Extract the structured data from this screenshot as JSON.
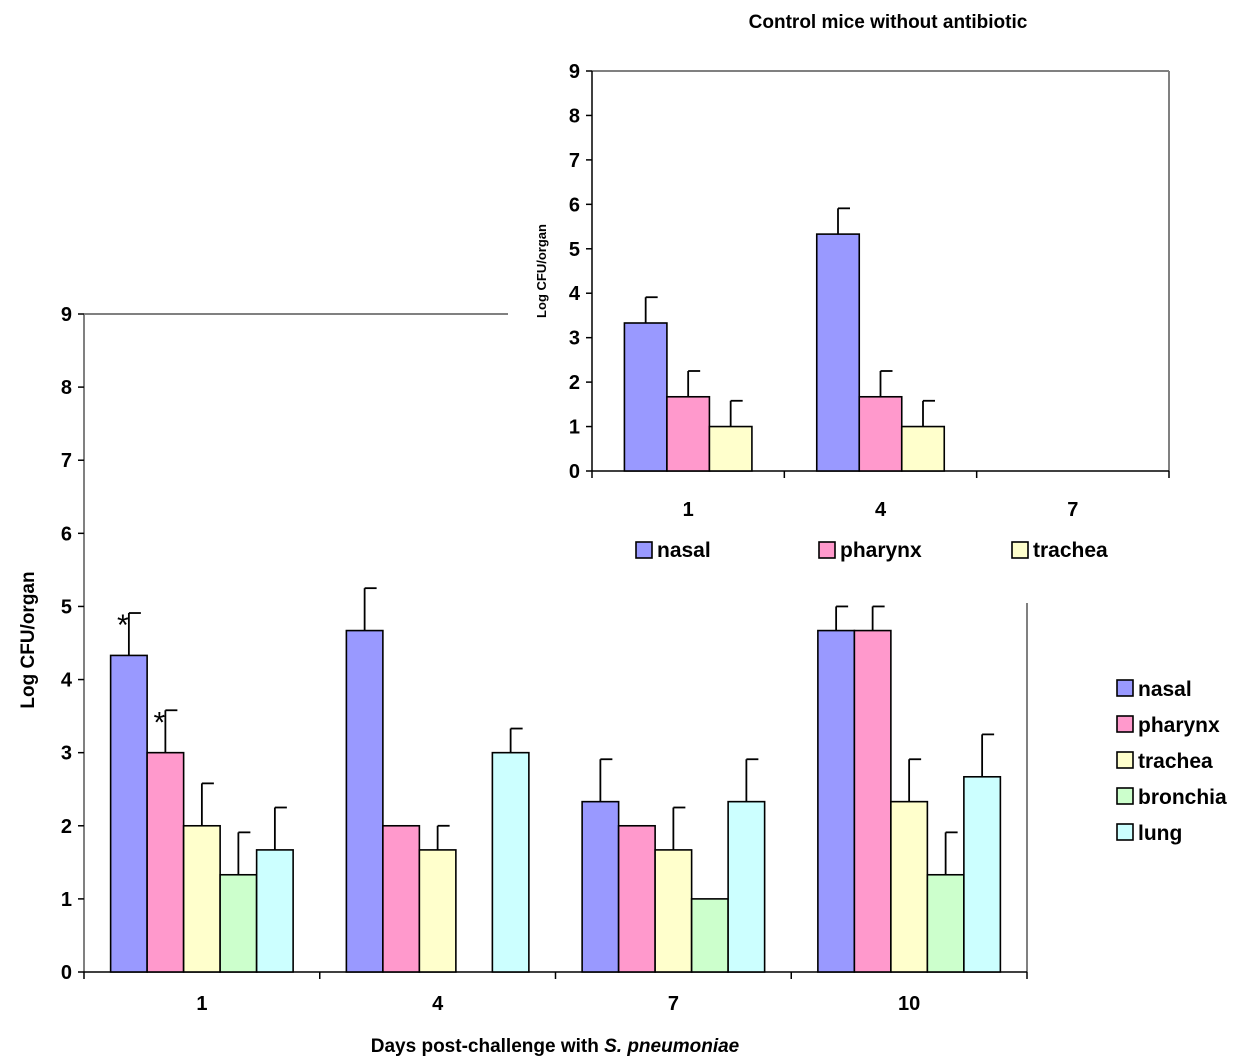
{
  "chart_data": [
    {
      "type": "bar",
      "title": "",
      "xlabel": "Days post-challenge with ",
      "xlabel_italic": "S. pneumoniae",
      "ylabel": "Log CFU/organ",
      "ylim": [
        0,
        9
      ],
      "yticks": [
        "0",
        "1",
        "2",
        "3",
        "4",
        "5",
        "6",
        "7",
        "8",
        "9"
      ],
      "categories": [
        "1",
        "4",
        "7",
        "10"
      ],
      "series": [
        {
          "name": "nasal",
          "color": "#9999ff",
          "values": [
            4.33,
            4.67,
            2.33,
            4.67
          ],
          "errors": [
            0.58,
            0.58,
            0.58,
            0.33
          ]
        },
        {
          "name": "pharynx",
          "color": "#ff99cc",
          "values": [
            3.0,
            2.0,
            2.0,
            4.67
          ],
          "errors": [
            0.58,
            0,
            0,
            0.33
          ]
        },
        {
          "name": "trachea",
          "color": "#ffffcc",
          "values": [
            2.0,
            1.67,
            1.67,
            2.33
          ],
          "errors": [
            0.58,
            0.33,
            0.58,
            0.58
          ]
        },
        {
          "name": "bronchia",
          "color": "#ccffcc",
          "values": [
            1.33,
            0,
            1.0,
            1.33
          ],
          "errors": [
            0.58,
            0,
            0,
            0.58
          ]
        },
        {
          "name": "lung",
          "color": "#ccffff",
          "values": [
            1.67,
            3.0,
            2.33,
            2.67
          ],
          "errors": [
            0.58,
            0.33,
            0.58,
            0.58
          ]
        }
      ],
      "annotations": [
        {
          "text": "*",
          "series": "nasal",
          "category": "1"
        },
        {
          "text": "*",
          "series": "pharynx",
          "category": "1"
        }
      ],
      "legend": "right"
    },
    {
      "type": "bar",
      "title": "Control mice without antibiotic",
      "xlabel": "",
      "ylabel": "Log CFU/organ",
      "ylim": [
        0,
        9
      ],
      "yticks": [
        "0",
        "1",
        "2",
        "3",
        "4",
        "5",
        "6",
        "7",
        "8",
        "9"
      ],
      "categories": [
        "1",
        "4",
        "7"
      ],
      "series": [
        {
          "name": "nasal",
          "color": "#9999ff",
          "values": [
            3.33,
            5.33,
            0
          ],
          "errors": [
            0.58,
            0.58,
            0
          ]
        },
        {
          "name": "pharynx",
          "color": "#ff99cc",
          "values": [
            1.67,
            1.67,
            0
          ],
          "errors": [
            0.58,
            0.58,
            0
          ]
        },
        {
          "name": "trachea",
          "color": "#ffffcc",
          "values": [
            1.0,
            1.0,
            0
          ],
          "errors": [
            0.58,
            0.58,
            0
          ]
        }
      ],
      "legend": "bottom"
    }
  ]
}
